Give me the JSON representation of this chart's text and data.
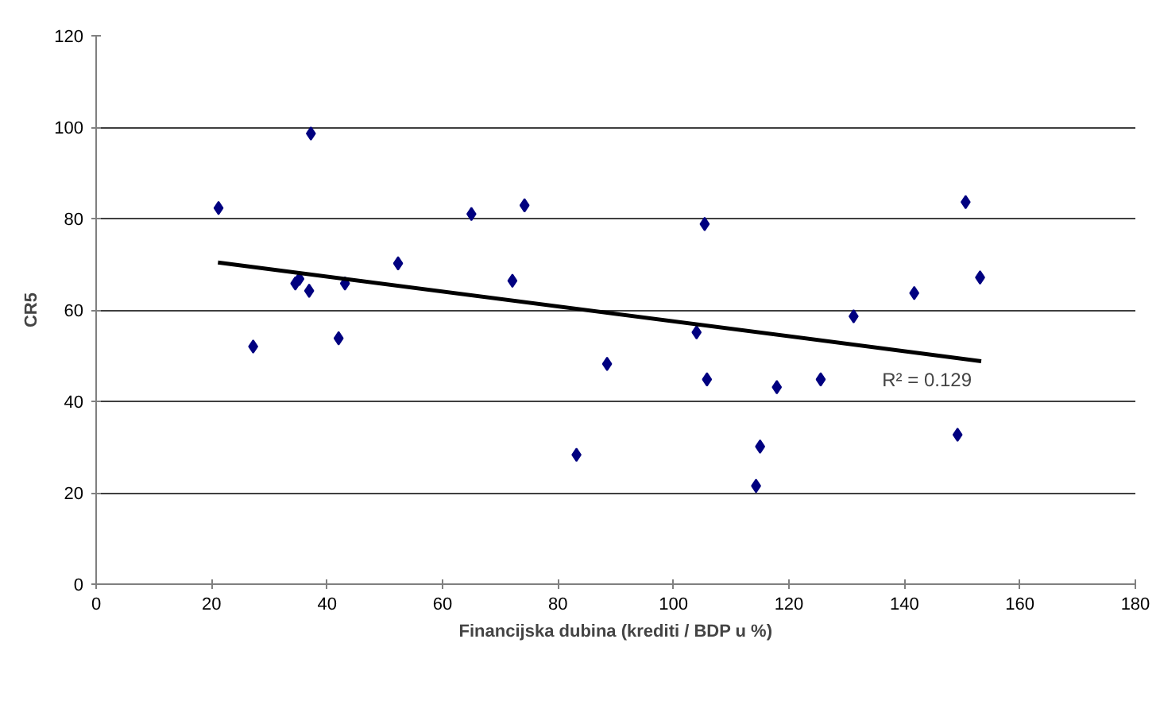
{
  "chart_data": {
    "type": "scatter",
    "xlabel": "Financijska dubina (krediti / BDP u %)",
    "ylabel": "CR5",
    "xlim": [
      0,
      180
    ],
    "xticks": [
      0,
      20,
      40,
      60,
      80,
      100,
      120,
      140,
      160,
      180
    ],
    "ylim": [
      0,
      120
    ],
    "yticks": [
      0,
      20,
      40,
      60,
      80,
      100,
      120
    ],
    "grid": "y",
    "marker": "diamond",
    "series": [
      {
        "color": "#000080",
        "x": [
          21.2,
          37.2,
          27.2,
          34.5,
          35.2,
          36.9,
          43.1,
          42.0,
          52.3,
          65.0,
          74.2,
          72.1,
          105.4,
          104.0,
          88.5,
          105.8,
          117.9,
          83.2,
          115.0,
          150.6,
          153.1,
          141.7,
          131.2,
          125.5,
          114.3,
          149.2
        ],
        "values": [
          82.3,
          98.6,
          52.0,
          65.8,
          66.8,
          64.2,
          65.8,
          53.8,
          70.2,
          81.0,
          82.9,
          66.4,
          78.8,
          55.1,
          48.2,
          44.8,
          43.1,
          28.3,
          30.1,
          83.6,
          67.1,
          63.7,
          58.6,
          44.8,
          21.5,
          32.7
        ]
      },
      {
        "type": "line",
        "marker": "none",
        "color": "#000000",
        "x": [
          21.1,
          153.3
        ],
        "values": [
          70.4,
          48.8
        ]
      }
    ],
    "annotations": [
      "R² = 0.129"
    ]
  }
}
